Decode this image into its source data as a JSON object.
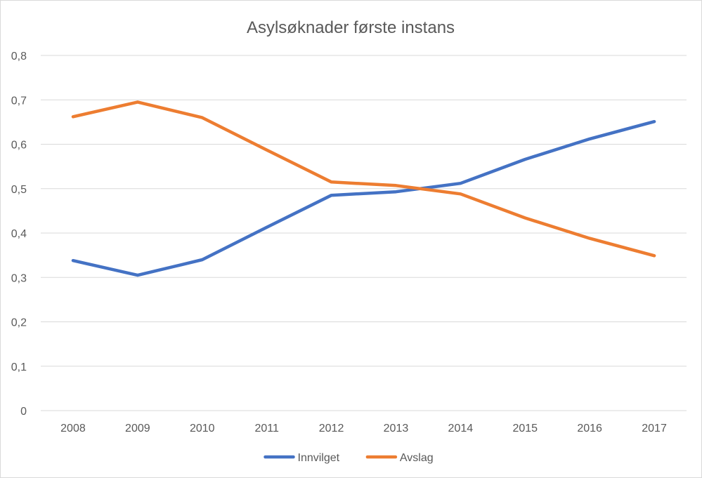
{
  "chart_data": {
    "type": "line",
    "title": "Asylsøknader første instans",
    "xlabel": "",
    "ylabel": "",
    "categories": [
      "2008",
      "2009",
      "2010",
      "2011",
      "2012",
      "2013",
      "2014",
      "2015",
      "2016",
      "2017"
    ],
    "series": [
      {
        "name": "Innvilget",
        "color": "#4472c4",
        "values": [
          0.338,
          0.305,
          0.34,
          0.413,
          0.485,
          0.493,
          0.512,
          0.566,
          0.612,
          0.651
        ]
      },
      {
        "name": "Avslag",
        "color": "#ed7d31",
        "values": [
          0.662,
          0.695,
          0.66,
          0.587,
          0.515,
          0.507,
          0.488,
          0.434,
          0.388,
          0.349
        ]
      }
    ],
    "ylim": [
      0,
      0.8
    ],
    "yticks": [
      "0",
      "0,1",
      "0,2",
      "0,3",
      "0,4",
      "0,5",
      "0,6",
      "0,7",
      "0,8"
    ],
    "grid": true,
    "legend_position": "bottom"
  }
}
